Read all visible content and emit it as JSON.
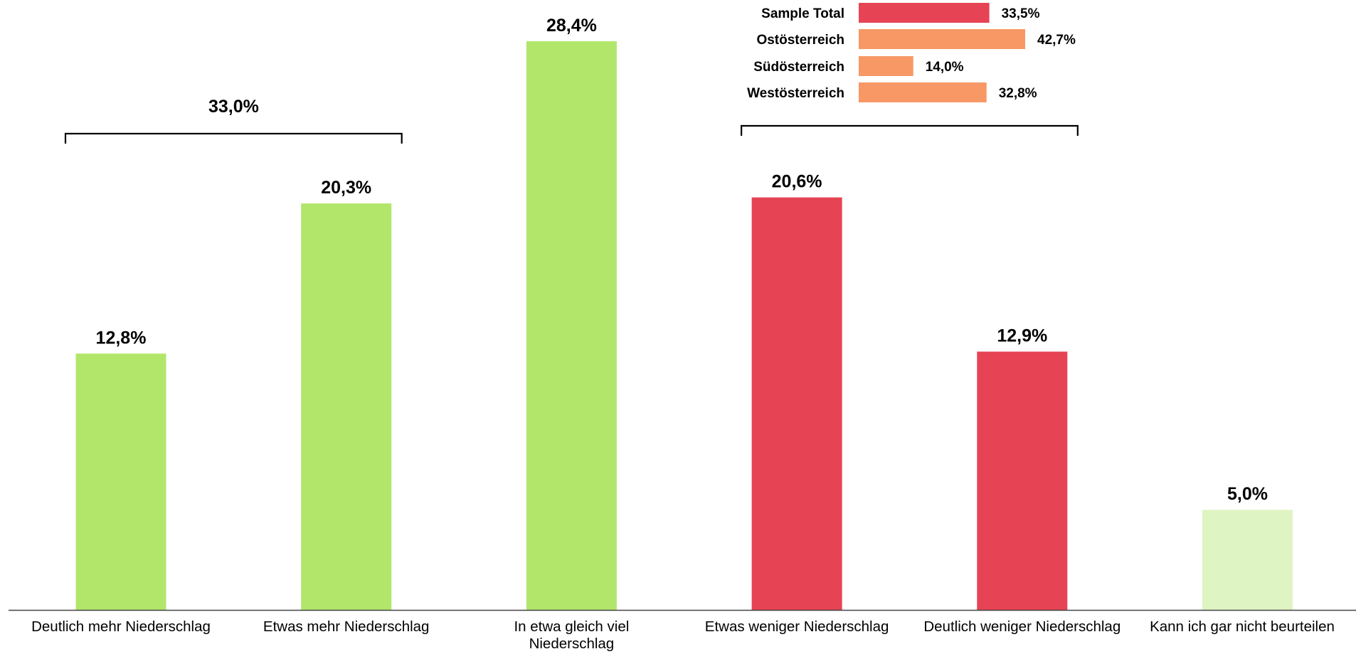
{
  "chart_data": [
    {
      "type": "bar",
      "categories": [
        "Deutlich mehr Niederschlag",
        "Etwas mehr Niederschlag",
        "In etwa gleich viel Niederschlag",
        "Etwas weniger Niederschlag",
        "Deutlich weniger Niederschlag",
        "Kann ich gar nicht beurteilen"
      ],
      "values": [
        12.8,
        20.3,
        28.4,
        20.6,
        12.9,
        5.0
      ],
      "value_labels": [
        "12,8%",
        "20,3%",
        "28,4%",
        "20,6%",
        "12,9%",
        "5,0%"
      ],
      "colors": [
        "#b2e66b",
        "#b2e66b",
        "#b2e66b",
        "#e64354",
        "#e64354",
        "#dff4c3"
      ],
      "ylim": [
        0,
        28.4
      ],
      "grid": false,
      "groups": [
        {
          "label": "33,0%",
          "from": 0,
          "to": 1
        },
        {
          "label": "",
          "from": 3,
          "to": 4
        }
      ]
    },
    {
      "type": "bar",
      "orientation": "horizontal",
      "categories": [
        "Sample Total",
        "Ostösterreich",
        "Südösterreich",
        "Westösterreich"
      ],
      "values": [
        33.5,
        42.7,
        14.0,
        32.8
      ],
      "value_labels": [
        "33,5%",
        "42,7%",
        "14,0%",
        "32,8%"
      ],
      "colors": [
        "#e64354",
        "#f79865",
        "#f79865",
        "#f79865"
      ],
      "grid": false
    }
  ]
}
